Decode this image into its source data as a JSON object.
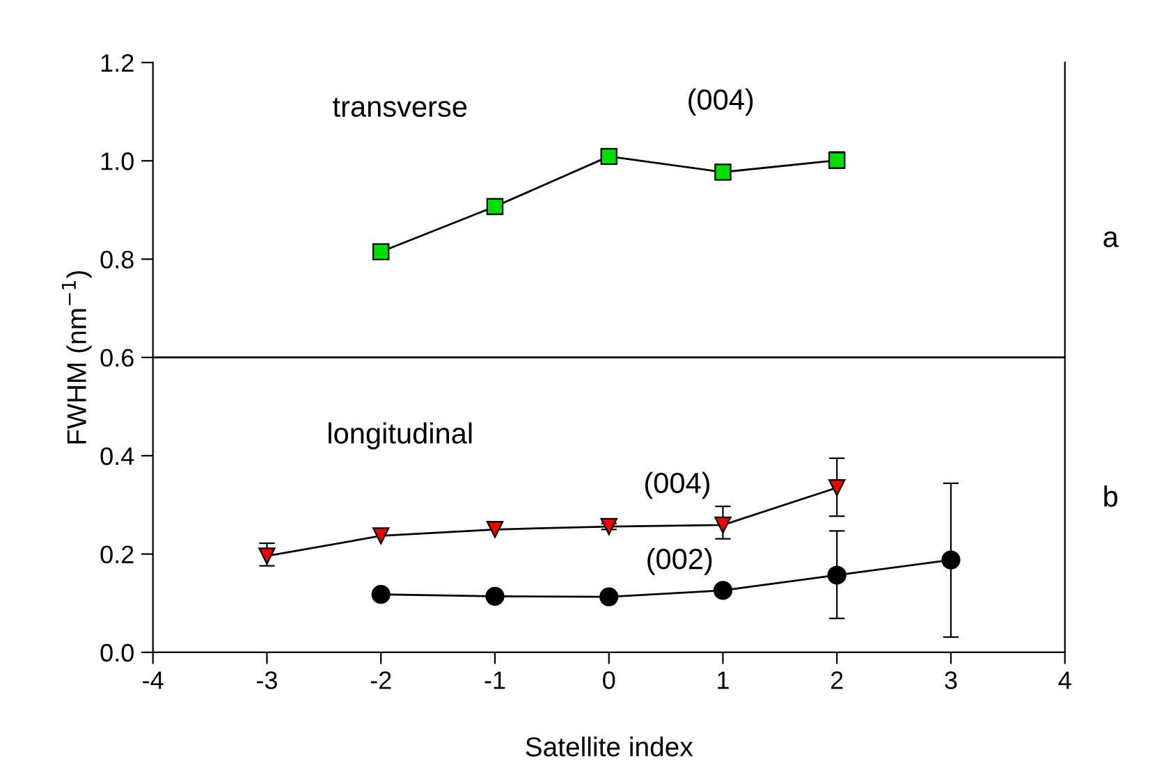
{
  "chart_data": {
    "type": "line",
    "xlabel": "Satellite index",
    "ylabel": "FWHM (nm$^{−1}$)",
    "xlim": [
      -4,
      4
    ],
    "xticks": [
      -4,
      -3,
      -2,
      -1,
      0,
      1,
      2,
      3,
      4
    ],
    "ylim": [
      0,
      1.2
    ],
    "yticks": [
      {
        "value": 0,
        "label": "0.0"
      },
      0.2,
      0.4,
      0.6,
      0.8,
      {
        "value": 1,
        "label": "1.0"
      },
      1.2
    ],
    "grid": false,
    "legend": false,
    "line_style": "solid",
    "series": [
      {
        "color": "#00dd00",
        "marker": "square",
        "x": [
          -2,
          -1,
          0,
          1,
          2
        ],
        "values": [
          0.815,
          0.907,
          1.009,
          0.977,
          1.001
        ],
        "errors": [
          null,
          null,
          null,
          null,
          [
            0.985,
            1.018
          ]
        ]
      },
      {
        "color": "#ee0000",
        "marker": "triangle",
        "x": [
          -3,
          -2,
          -1,
          0,
          1,
          2
        ],
        "values": [
          0.196,
          0.237,
          0.25,
          0.256,
          0.259,
          0.335
        ],
        "errors": [
          [
            0.176,
            0.222
          ],
          null,
          null,
          [
            0.25,
            0.262
          ],
          [
            0.231,
            0.297
          ],
          [
            0.277,
            0.395
          ]
        ]
      },
      {
        "color": "#000000",
        "marker": "circle",
        "x": [
          -2,
          -1,
          0,
          1,
          2,
          3
        ],
        "values": [
          0.118,
          0.114,
          0.113,
          0.126,
          0.157,
          0.188
        ],
        "errors": [
          null,
          null,
          null,
          null,
          [
            0.069,
            0.247
          ],
          [
            0.031,
            0.344
          ]
        ]
      }
    ],
    "ref_lines": [
      {
        "axis": "y",
        "value": 0.6,
        "color": "#000000"
      }
    ],
    "annotations": [
      "transverse",
      "(004)",
      "longitudinal",
      "(004)",
      "(002)",
      "a",
      "b"
    ]
  }
}
